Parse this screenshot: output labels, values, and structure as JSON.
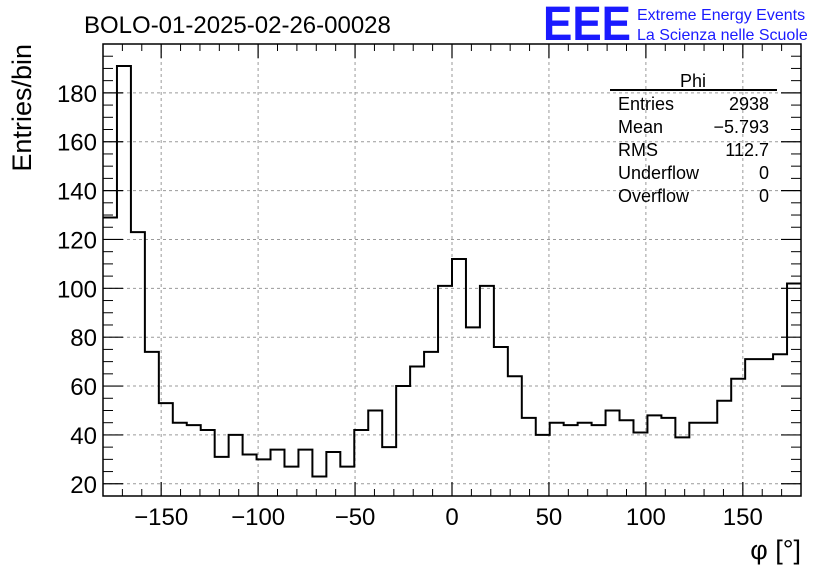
{
  "chart_data": {
    "type": "histogram",
    "title": "BOLO-01-2025-02-26-00028",
    "xlabel": "φ [°]",
    "ylabel": "Entries/bin",
    "xlim": [
      -180,
      180
    ],
    "ylim": [
      15,
      200
    ],
    "x_ticks": [
      -150,
      -100,
      -50,
      0,
      50,
      100,
      150
    ],
    "y_ticks": [
      20,
      40,
      60,
      80,
      100,
      120,
      140,
      160,
      180
    ],
    "bin_width": 7.2,
    "values": [
      129,
      191,
      123,
      74,
      53,
      45,
      44,
      42,
      31,
      40,
      32,
      30,
      34,
      27,
      34,
      23,
      33,
      27,
      42,
      50,
      35,
      60,
      68,
      74,
      101,
      112,
      84,
      101,
      76,
      64,
      47,
      40,
      45,
      44,
      45,
      44,
      50,
      46,
      41,
      48,
      47,
      39,
      45,
      45,
      54,
      63,
      71,
      71,
      73,
      102
    ],
    "grid": true,
    "color": "#000000",
    "stats": {
      "name": "Phi",
      "rows": [
        {
          "label": "Entries",
          "value": "2938"
        },
        {
          "label": "Mean",
          "value": "−5.793"
        },
        {
          "label": "RMS",
          "value": "112.7"
        },
        {
          "label": "Underflow",
          "value": "0"
        },
        {
          "label": "Overflow",
          "value": "0"
        }
      ]
    }
  },
  "logo": {
    "mark": "EEE",
    "line1": "Extreme Energy Events",
    "line2": "La Scienza nelle Scuole",
    "color": "#1a1aff"
  }
}
